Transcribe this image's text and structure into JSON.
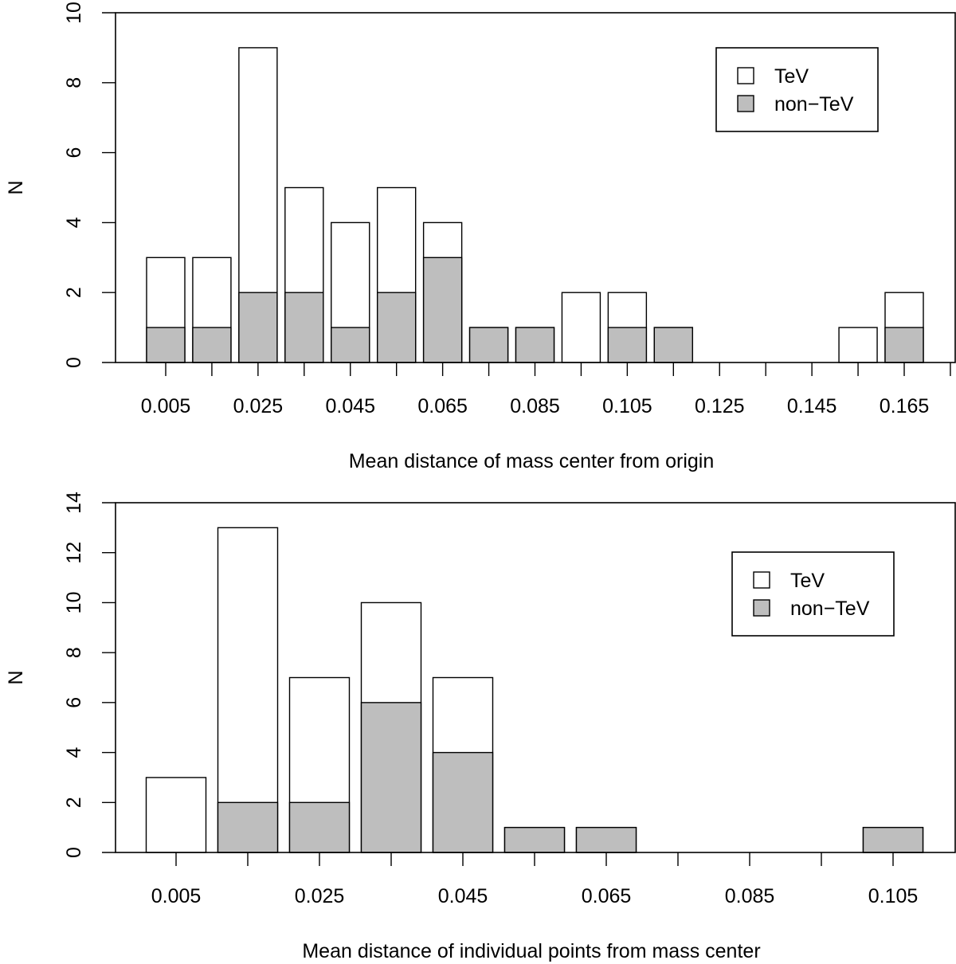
{
  "chart_data": [
    {
      "type": "bar",
      "stacking": "overlay",
      "title": "",
      "xlabel": "Mean distance of mass center from origin",
      "ylabel": "N",
      "x_tick_labels": [
        "0.005",
        "0.025",
        "0.045",
        "0.065",
        "0.085",
        "0.105",
        "0.125",
        "0.145",
        "0.165"
      ],
      "y_ticks": [
        0,
        2,
        4,
        6,
        8,
        10
      ],
      "ylim": [
        0,
        10
      ],
      "bin_start": 0.0,
      "bin_width": 0.01,
      "grid": false,
      "legend_position": "top-right",
      "series": [
        {
          "name": "TeV",
          "color": "#ffffff",
          "values": [
            3,
            3,
            9,
            5,
            4,
            5,
            4,
            1,
            1,
            2,
            2,
            1,
            0,
            0,
            0,
            1,
            2
          ]
        },
        {
          "name": "non−TeV",
          "color": "#bebebe",
          "values": [
            1,
            1,
            2,
            2,
            1,
            2,
            3,
            1,
            1,
            0,
            1,
            1,
            0,
            0,
            0,
            0,
            1
          ]
        }
      ]
    },
    {
      "type": "bar",
      "stacking": "overlay",
      "title": "",
      "xlabel": "Mean distance of individual points from mass center",
      "ylabel": "N",
      "x_tick_labels": [
        "0.005",
        "0.025",
        "0.045",
        "0.065",
        "0.085",
        "0.105"
      ],
      "y_ticks": [
        0,
        2,
        4,
        6,
        8,
        10,
        12,
        14
      ],
      "ylim": [
        0,
        14
      ],
      "bin_start": 0.0,
      "bin_width": 0.01,
      "grid": false,
      "legend_position": "top-right",
      "series": [
        {
          "name": "TeV",
          "color": "#ffffff",
          "values": [
            3,
            13,
            7,
            10,
            7,
            1,
            1,
            0,
            0,
            0,
            1
          ]
        },
        {
          "name": "non−TeV",
          "color": "#bebebe",
          "values": [
            0,
            2,
            2,
            6,
            4,
            1,
            1,
            0,
            0,
            0,
            1
          ]
        }
      ]
    }
  ]
}
